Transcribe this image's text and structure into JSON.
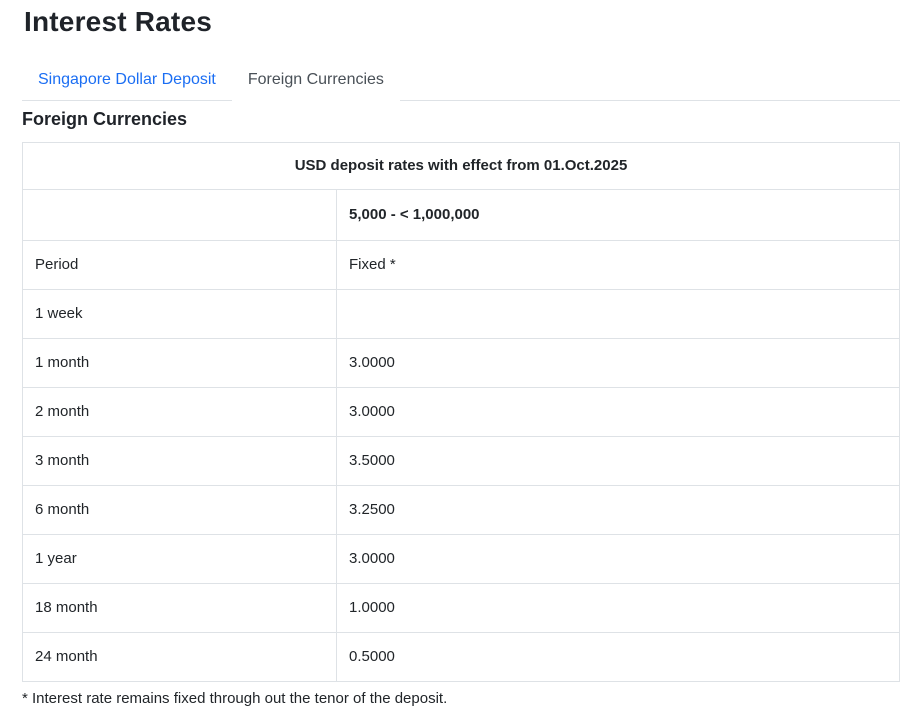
{
  "page": {
    "title": "Interest Rates"
  },
  "tabs": [
    {
      "label": "Singapore Dollar Deposit",
      "active": false
    },
    {
      "label": "Foreign Currencies",
      "active": true
    }
  ],
  "section": {
    "heading": "Foreign Currencies"
  },
  "table": {
    "caption": "USD deposit rates with effect from 01.Oct.2025",
    "tier_header": "5,000 - < 1,000,000",
    "column_headers": {
      "period": "Period",
      "rate": "Fixed *"
    },
    "rows": [
      {
        "period": "1 week",
        "rate": ""
      },
      {
        "period": "1 month",
        "rate": "3.0000"
      },
      {
        "period": "2 month",
        "rate": "3.0000"
      },
      {
        "period": "3 month",
        "rate": "3.5000"
      },
      {
        "period": "6 month",
        "rate": "3.2500"
      },
      {
        "period": "1 year",
        "rate": "3.0000"
      },
      {
        "period": "18 month",
        "rate": "1.0000"
      },
      {
        "period": "24 month",
        "rate": "0.5000"
      }
    ]
  },
  "footnote": "* Interest rate remains fixed through out the tenor of the deposit.",
  "colors": {
    "link_blue": "#1b6ef3",
    "active_tab_text": "#495057",
    "border": "#dee2e6",
    "text": "#212529"
  }
}
